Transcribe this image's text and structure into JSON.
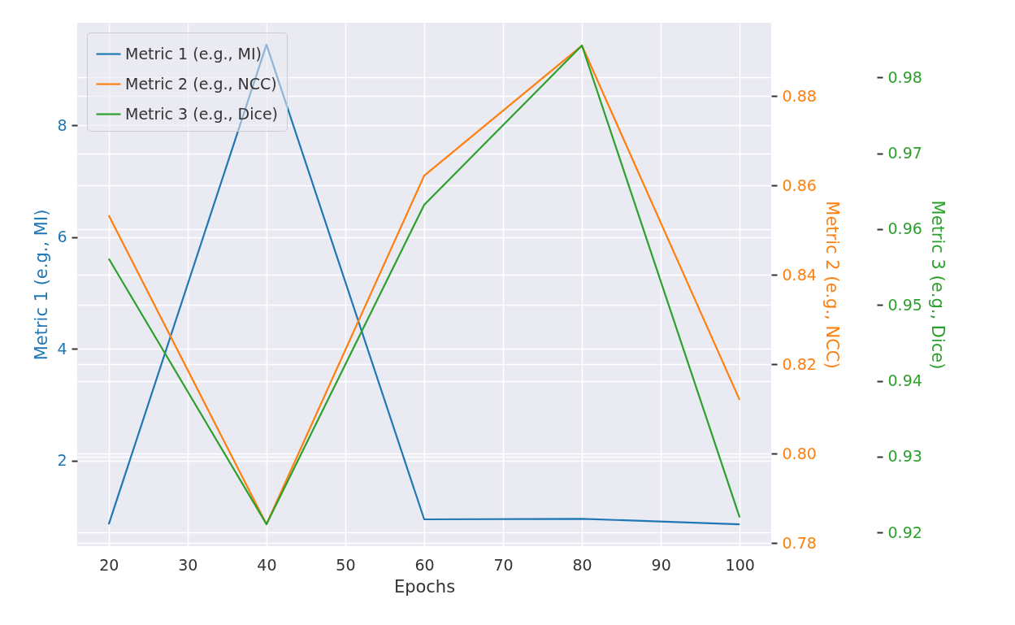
{
  "chart_data": {
    "type": "line",
    "xlabel": "Epochs",
    "ylabel": "Metric 1 (e.g., MI)",
    "y2label": "Metric 2 (e.g., NCC)",
    "y3label": "Metric 3 (e.g., Dice)",
    "x": [
      20,
      40,
      60,
      80,
      100
    ],
    "series": [
      {
        "name": "Metric 1 (e.g., MI)",
        "color": "#1f77b4",
        "values": [
          0.86,
          9.45,
          0.95,
          0.96,
          0.86
        ]
      },
      {
        "name": "Metric 2 (e.g., NCC)",
        "color": "#ff7f0e",
        "axis": "y2",
        "values": [
          0.8533,
          0.7842,
          0.8622,
          0.8913,
          0.812
        ]
      },
      {
        "name": "Metric 3 (e.g., Dice)",
        "color": "#2ca02c",
        "axis": "y3",
        "values": [
          0.9561,
          0.9211,
          0.9632,
          0.9842,
          0.922
        ]
      }
    ],
    "xlim": [
      16,
      104
    ],
    "xticks": [
      20,
      30,
      40,
      50,
      60,
      70,
      80,
      90,
      100
    ],
    "ylim": [
      0.47,
      9.84
    ],
    "yticks": [
      2,
      4,
      6,
      8
    ],
    "y2lim": [
      0.7793,
      0.8964
    ],
    "y2ticks": [
      0.78,
      {
        "value": 0.8,
        "label": "0.80"
      },
      0.82,
      0.84,
      0.86,
      0.88
    ],
    "y3lim": [
      0.9182,
      0.9872
    ],
    "y3ticks": [
      0.92,
      0.93,
      0.94,
      0.95,
      0.96,
      0.97,
      0.98
    ],
    "grid": true,
    "legend": "top left",
    "line_style": "solid",
    "marker": "none"
  }
}
